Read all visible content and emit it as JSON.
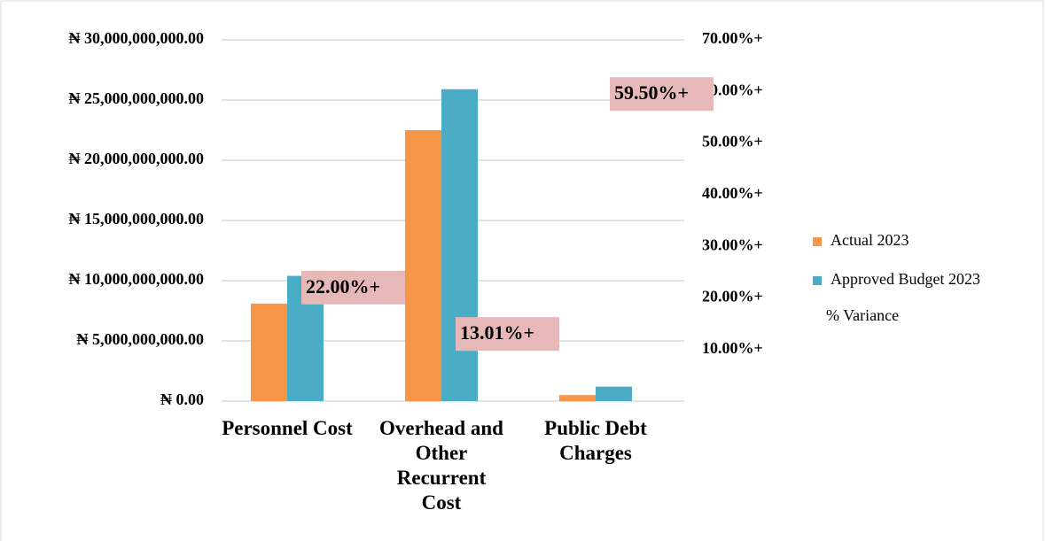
{
  "chart_data": {
    "type": "bar",
    "categories": [
      "Personnel Cost",
      "Overhead and Other Recurrent Cost",
      "Public Debt Charges"
    ],
    "series": [
      {
        "name": "Actual 2023",
        "color": "#f79646",
        "values": [
          8100000000,
          22500000000,
          500000000
        ]
      },
      {
        "name": "Approved Budget 2023",
        "color": "#4bacc6",
        "values": [
          10400000000,
          25900000000,
          1200000000
        ]
      },
      {
        "name": "% Variance",
        "type": "label",
        "axis": "y2",
        "label_color": "#e6b9b8",
        "values": [
          22,
          13.01,
          59.5
        ],
        "value_labels": [
          "22.00%+",
          "13.01%+",
          "59.50%+"
        ]
      }
    ],
    "ylim": [
      0,
      30000000000
    ],
    "yticks": [
      {
        "value": 0,
        "label": "₦ 0.00"
      },
      {
        "value": 5000000000,
        "label": "₦ 5,000,000,000.00"
      },
      {
        "value": 10000000000,
        "label": "₦ 10,000,000,000.00"
      },
      {
        "value": 15000000000,
        "label": "₦ 15,000,000,000.00"
      },
      {
        "value": 20000000000,
        "label": "₦ 20,000,000,000.00"
      },
      {
        "value": 25000000000,
        "label": "₦ 25,000,000,000.00"
      },
      {
        "value": 30000000000,
        "label": "₦ 30,000,000,000.00"
      }
    ],
    "y2lim": [
      0,
      70
    ],
    "y2ticks": [
      {
        "value": 10,
        "label": "10.00%+"
      },
      {
        "value": 20,
        "label": "20.00%+"
      },
      {
        "value": 30,
        "label": "30.00%+"
      },
      {
        "value": 40,
        "label": "40.00%+"
      },
      {
        "value": 50,
        "label": "50.00%+"
      },
      {
        "value": 60,
        "label": "60.00%+"
      },
      {
        "value": 70,
        "label": "70.00%+"
      }
    ],
    "grid": true,
    "legend": "right"
  }
}
